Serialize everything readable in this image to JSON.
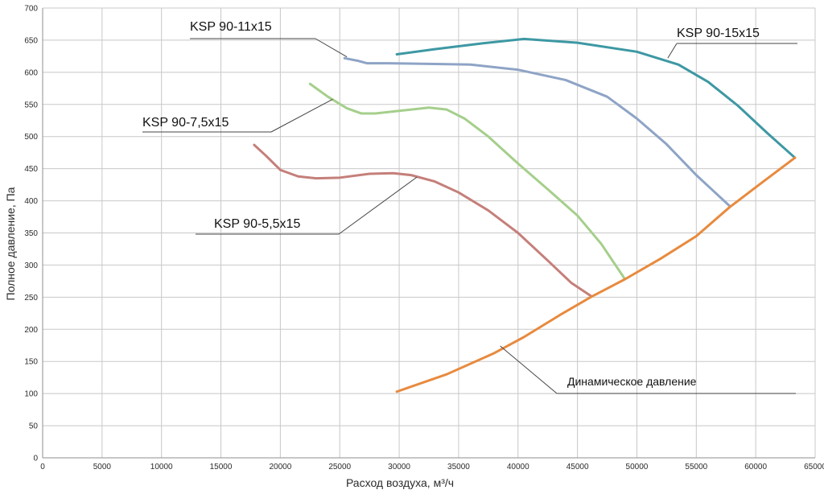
{
  "chart_data": {
    "type": "line",
    "xlabel": "Расход воздуха, м³/ч",
    "ylabel": "Полное давление, Па",
    "xlim": [
      0,
      65000
    ],
    "ylim": [
      0,
      700
    ],
    "xticks": [
      0,
      5000,
      10000,
      15000,
      20000,
      25000,
      30000,
      35000,
      40000,
      45000,
      50000,
      55000,
      60000,
      65000
    ],
    "yticks": [
      0,
      50,
      100,
      150,
      200,
      250,
      300,
      350,
      400,
      450,
      500,
      550,
      600,
      650,
      700
    ],
    "grid": true,
    "series": [
      {
        "name": "KSP 90-15x15",
        "color": "#3d98a3",
        "points": [
          [
            29800,
            628
          ],
          [
            33000,
            636
          ],
          [
            37000,
            645
          ],
          [
            40500,
            652
          ],
          [
            45000,
            646
          ],
          [
            50000,
            632
          ],
          [
            53500,
            612
          ],
          [
            56000,
            585
          ],
          [
            58500,
            548
          ],
          [
            61000,
            505
          ],
          [
            63300,
            467
          ]
        ]
      },
      {
        "name": "KSP 90-11x15",
        "color": "#8ea4c6",
        "points": [
          [
            25400,
            622
          ],
          [
            26500,
            618
          ],
          [
            27300,
            614
          ],
          [
            29000,
            614
          ],
          [
            33000,
            613
          ],
          [
            36000,
            612
          ],
          [
            40000,
            604
          ],
          [
            44000,
            588
          ],
          [
            47500,
            562
          ],
          [
            50000,
            528
          ],
          [
            52500,
            488
          ],
          [
            55000,
            440
          ],
          [
            57800,
            392
          ]
        ]
      },
      {
        "name": "KSP 90-7,5x15",
        "color": "#a5cf8b",
        "points": [
          [
            22500,
            582
          ],
          [
            24000,
            562
          ],
          [
            25600,
            544
          ],
          [
            26800,
            536
          ],
          [
            28000,
            536
          ],
          [
            30000,
            540
          ],
          [
            32500,
            545
          ],
          [
            34000,
            542
          ],
          [
            35500,
            528
          ],
          [
            37500,
            500
          ],
          [
            40000,
            458
          ],
          [
            42500,
            418
          ],
          [
            45000,
            377
          ],
          [
            47000,
            333
          ],
          [
            49000,
            278
          ]
        ]
      },
      {
        "name": "KSP 90-5,5x15",
        "color": "#c57f7a",
        "points": [
          [
            17800,
            487
          ],
          [
            18800,
            470
          ],
          [
            20000,
            448
          ],
          [
            21500,
            438
          ],
          [
            23000,
            435
          ],
          [
            25000,
            436
          ],
          [
            27500,
            442
          ],
          [
            29500,
            443
          ],
          [
            31000,
            440
          ],
          [
            33000,
            430
          ],
          [
            35000,
            413
          ],
          [
            37500,
            385
          ],
          [
            40000,
            350
          ],
          [
            42500,
            307
          ],
          [
            44500,
            272
          ],
          [
            46200,
            251
          ]
        ]
      },
      {
        "name": "Динамическое давление",
        "color": "#e88a3e",
        "points": [
          [
            29800,
            103
          ],
          [
            34000,
            130
          ],
          [
            38000,
            163
          ],
          [
            40500,
            188
          ],
          [
            43500,
            222
          ],
          [
            46200,
            251
          ],
          [
            49000,
            278
          ],
          [
            52000,
            310
          ],
          [
            55000,
            345
          ],
          [
            57800,
            390
          ],
          [
            60500,
            428
          ],
          [
            63300,
            467
          ]
        ]
      }
    ],
    "annotations": [
      {
        "text": "KSP 90-11x15",
        "series": "KSP 90-11x15",
        "target": [
          25600,
          624
        ]
      },
      {
        "text": "KSP 90-15x15",
        "series": "KSP 90-15x15",
        "target": [
          52600,
          622
        ]
      },
      {
        "text": "KSP 90-7,5x15",
        "series": "KSP 90-7,5x15",
        "target": [
          24400,
          558
        ]
      },
      {
        "text": "KSP 90-5,5x15",
        "series": "KSP 90-5,5x15",
        "target": [
          31500,
          437
        ]
      },
      {
        "text": "Динамическое давление",
        "series": "Динамическое давление",
        "target": [
          38500,
          174
        ]
      }
    ]
  }
}
